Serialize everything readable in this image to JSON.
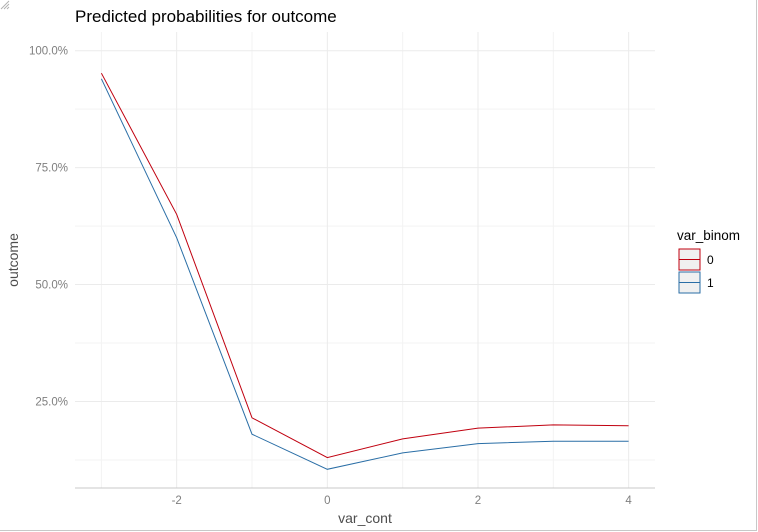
{
  "chart_data": {
    "type": "line",
    "title": "Predicted probabilities for outcome",
    "xlabel": "var_cont",
    "ylabel": "outcome",
    "x": [
      -3,
      -2,
      -1,
      0,
      1,
      2,
      3,
      4
    ],
    "xticks": [
      -2,
      0,
      2,
      4
    ],
    "xtick_labels": [
      "-2",
      "0",
      "2",
      "4"
    ],
    "yticks": [
      25,
      50,
      75,
      100
    ],
    "ytick_labels": [
      "25.0%",
      "50.0%",
      "75.0%",
      "100.0%"
    ],
    "xlim": [
      -3.35,
      4.35
    ],
    "ylim": [
      6.5,
      104
    ],
    "grid": true,
    "legend": {
      "title": "var_binom",
      "position": "right"
    },
    "series": [
      {
        "name": "0",
        "color": "#c0000f",
        "values": [
          95.2,
          65.0,
          21.5,
          13.0,
          17.0,
          19.3,
          20.0,
          19.8
        ]
      },
      {
        "name": "1",
        "color": "#2a6ea6",
        "values": [
          94.0,
          60.0,
          18.0,
          10.5,
          14.0,
          16.0,
          16.5,
          16.5
        ]
      }
    ]
  }
}
